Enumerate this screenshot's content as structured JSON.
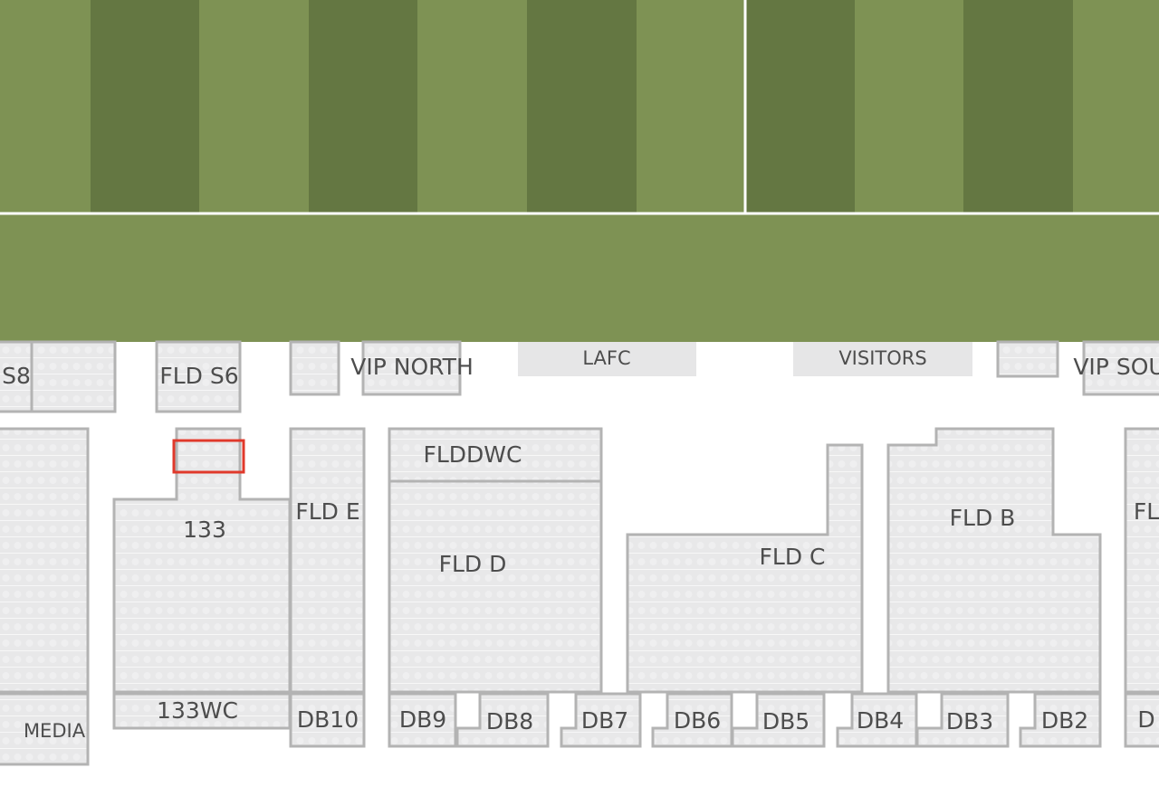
{
  "sections": [
    {
      "label": "S8"
    },
    {
      "label": "FLD S6"
    },
    {
      "label": "VIP NORTH"
    },
    {
      "label": "LAFC"
    },
    {
      "label": "VISITORS"
    },
    {
      "label": "VIP SOU"
    },
    {
      "label": "133"
    },
    {
      "label": "133WC"
    },
    {
      "label": "MEDIA"
    },
    {
      "label": "FLD E"
    },
    {
      "label": "FLDDWC"
    },
    {
      "label": "FLD D"
    },
    {
      "label": "FLD C"
    },
    {
      "label": "FLD B"
    },
    {
      "label": "FL"
    },
    {
      "label": "DB10"
    },
    {
      "label": "DB9"
    },
    {
      "label": "DB8"
    },
    {
      "label": "DB7"
    },
    {
      "label": "DB6"
    },
    {
      "label": "DB5"
    },
    {
      "label": "DB4"
    },
    {
      "label": "DB3"
    },
    {
      "label": "DB2"
    },
    {
      "label": "D"
    }
  ]
}
